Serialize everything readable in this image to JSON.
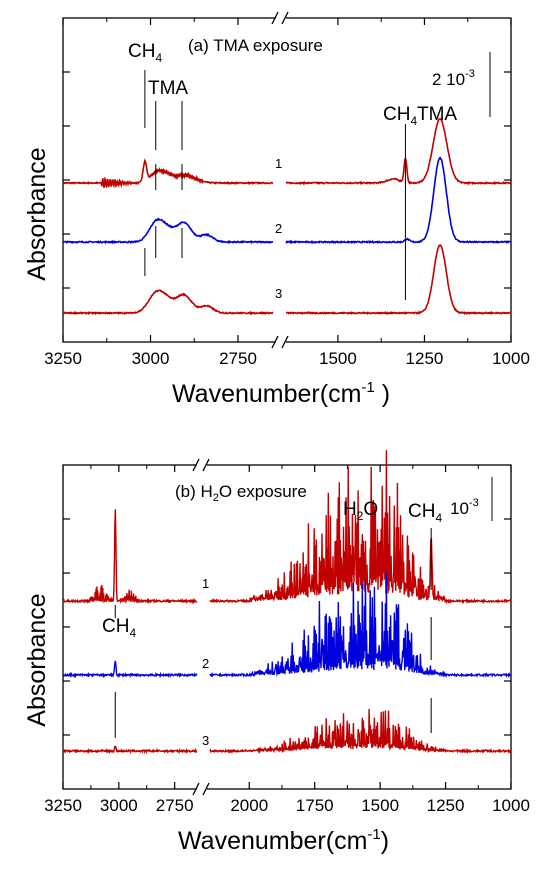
{
  "chart_data": [
    {
      "type": "line",
      "title": "(a) TMA exposure",
      "xlabel": "Wavenumber(cm-1 )",
      "ylabel": "Absorbance",
      "axis_break": true,
      "segments": [
        {
          "xlim": [
            3250,
            2650
          ],
          "ticks": [
            3250,
            3000,
            2750
          ],
          "tick_labels": [
            "3250",
            "3000",
            "2750"
          ]
        },
        {
          "xlim": [
            1650,
            1000
          ],
          "ticks": [
            1500,
            1250,
            1000
          ],
          "tick_labels": [
            "1500",
            "1250",
            "1000"
          ]
        }
      ],
      "scale_bar": {
        "label": "2 10",
        "superscript": "-3"
      },
      "series": [
        {
          "name": "1",
          "color": "#c00000",
          "peaks": [
            [
              3016,
              1.0,
              5
            ],
            [
              2985,
              0.35,
              18
            ],
            [
              2960,
              0.4,
              22
            ],
            [
              2900,
              0.38,
              28
            ],
            [
              1305,
              1.2,
              4
            ],
            [
              1340,
              0.2,
              18
            ],
            [
              1205,
              3.2,
              20
            ]
          ],
          "offset": 0
        },
        {
          "name": "2",
          "color": "#0000dd",
          "peaks": [
            [
              2985,
              0.9,
              20
            ],
            [
              2955,
              0.55,
              20
            ],
            [
              2905,
              0.95,
              22
            ],
            [
              2840,
              0.35,
              18
            ],
            [
              1300,
              0.15,
              6
            ],
            [
              1205,
              4.2,
              18
            ]
          ],
          "offset": 1
        },
        {
          "name": "3",
          "color": "#c00000",
          "peaks": [
            [
              2985,
              0.9,
              22
            ],
            [
              2955,
              0.5,
              20
            ],
            [
              2905,
              0.9,
              22
            ],
            [
              2840,
              0.35,
              18
            ],
            [
              1205,
              3.4,
              18
            ]
          ],
          "offset": 2
        }
      ],
      "annotations": [
        "CH4",
        "TMA",
        "CH4",
        "TMA"
      ]
    },
    {
      "type": "line",
      "title": "(b) H2O exposure",
      "xlabel": "Wavenumber(cm-1)",
      "ylabel": "Absorbance",
      "axis_break": true,
      "segments": [
        {
          "xlim": [
            3250,
            2650
          ],
          "ticks": [
            3250,
            3000,
            2750
          ],
          "tick_labels": [
            "3250",
            "3000",
            "2750"
          ]
        },
        {
          "xlim": [
            2150,
            1000
          ],
          "ticks": [
            2000,
            1750,
            1500,
            1250,
            1000
          ],
          "tick_labels": [
            "2000",
            "1750",
            "1500",
            "1250",
            "1000"
          ]
        }
      ],
      "scale_bar": {
        "label": "10",
        "superscript": "-3"
      },
      "series": [
        {
          "name": "1",
          "color": "#c00000",
          "offset": 0,
          "ch4_peak": 3.8,
          "water_amp": 1.6
        },
        {
          "name": "2",
          "color": "#0000dd",
          "offset": 1,
          "ch4_peak": 0.6,
          "water_amp": 1.1
        },
        {
          "name": "3",
          "color": "#c00000",
          "offset": 2,
          "ch4_peak": 0.2,
          "water_amp": 0.5
        }
      ],
      "annotations": [
        "H2O",
        "CH4",
        "CH4"
      ]
    }
  ]
}
